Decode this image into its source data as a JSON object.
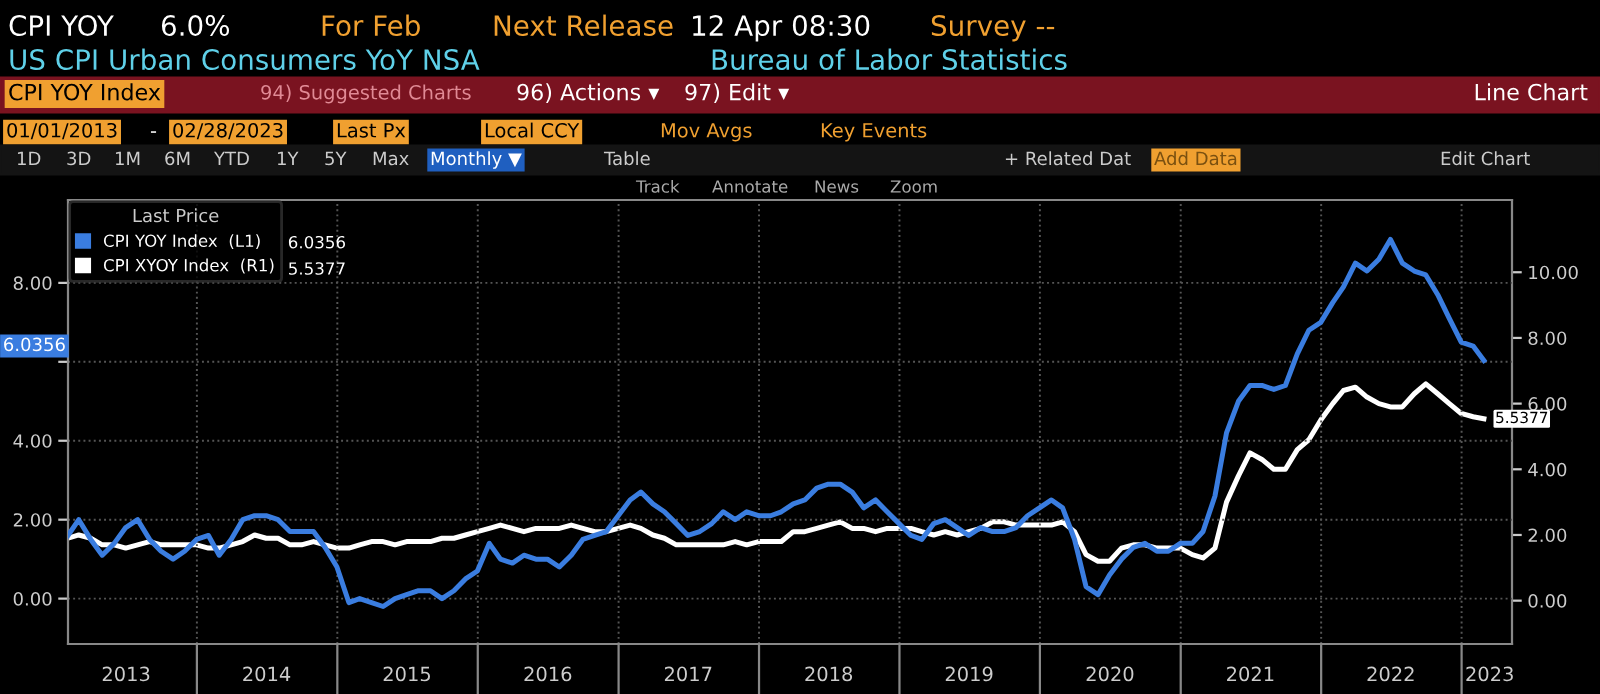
{
  "chart_data": {
    "type": "line",
    "title": "US CPI Urban Consumers YoY NSA",
    "subtitle": "Bureau of Labor Statistics",
    "legend_title": "Last Price",
    "annotations": [
      "CPI YOY",
      "6.0%",
      "For Feb",
      "Next Release",
      "12 Apr 08:30",
      "Survey --",
      "CPI YOY Index",
      "94) Suggested Charts",
      "96) Actions ▾",
      "97) Edit ▾",
      "Line Chart",
      "01/01/2013",
      "-",
      "02/28/2023",
      "Last Px",
      "Local CCY",
      "Mov Avgs",
      "Key Events",
      "1D",
      "3D",
      "1M",
      "6M",
      "YTD",
      "1Y",
      "5Y",
      "Max",
      "Monthly ▼",
      "Table",
      "+ Related Dat",
      "Add Data",
      "Edit Chart",
      "Track",
      "Annotate",
      "News",
      "Zoom",
      "6.0356",
      "5.5377",
      "6.0356"
    ],
    "x": [
      "2013-01-31",
      "2013-02-28",
      "2013-03-31",
      "2013-04-30",
      "2013-05-31",
      "2013-06-30",
      "2013-07-31",
      "2013-08-31",
      "2013-09-30",
      "2013-10-31",
      "2013-11-30",
      "2013-12-31",
      "2014-01-31",
      "2014-02-28",
      "2014-03-31",
      "2014-04-30",
      "2014-05-31",
      "2014-06-30",
      "2014-07-31",
      "2014-08-31",
      "2014-09-30",
      "2014-10-31",
      "2014-11-30",
      "2014-12-31",
      "2015-01-31",
      "2015-02-28",
      "2015-03-31",
      "2015-04-30",
      "2015-05-31",
      "2015-06-30",
      "2015-07-31",
      "2015-08-31",
      "2015-09-30",
      "2015-10-31",
      "2015-11-30",
      "2015-12-31",
      "2016-01-31",
      "2016-02-29",
      "2016-03-31",
      "2016-04-30",
      "2016-05-31",
      "2016-06-30",
      "2016-07-31",
      "2016-08-31",
      "2016-09-30",
      "2016-10-31",
      "2016-11-30",
      "2016-12-31",
      "2017-01-31",
      "2017-02-28",
      "2017-03-31",
      "2017-04-30",
      "2017-05-31",
      "2017-06-30",
      "2017-07-31",
      "2017-08-31",
      "2017-09-30",
      "2017-10-31",
      "2017-11-30",
      "2017-12-31",
      "2018-01-31",
      "2018-02-28",
      "2018-03-31",
      "2018-04-30",
      "2018-05-31",
      "2018-06-30",
      "2018-07-31",
      "2018-08-31",
      "2018-09-30",
      "2018-10-31",
      "2018-11-30",
      "2018-12-31",
      "2019-01-31",
      "2019-02-28",
      "2019-03-31",
      "2019-04-30",
      "2019-05-31",
      "2019-06-30",
      "2019-07-31",
      "2019-08-31",
      "2019-09-30",
      "2019-10-31",
      "2019-11-30",
      "2019-12-31",
      "2020-01-31",
      "2020-02-29",
      "2020-03-31",
      "2020-04-30",
      "2020-05-31",
      "2020-06-30",
      "2020-07-31",
      "2020-08-31",
      "2020-09-30",
      "2020-10-31",
      "2020-11-30",
      "2020-12-31",
      "2021-01-31",
      "2021-02-28",
      "2021-03-31",
      "2021-04-30",
      "2021-05-31",
      "2021-06-30",
      "2021-07-31",
      "2021-08-31",
      "2021-09-30",
      "2021-10-31",
      "2021-11-30",
      "2021-12-31",
      "2022-01-31",
      "2022-02-28",
      "2022-03-31",
      "2022-04-30",
      "2022-05-31",
      "2022-06-30",
      "2022-07-31",
      "2022-08-31",
      "2022-09-30",
      "2022-10-31",
      "2022-11-30",
      "2022-12-31",
      "2023-01-31",
      "2023-02-28"
    ],
    "series": [
      {
        "name": "CPI YOY Index  (L1)",
        "color": "#3a7de0",
        "values": [
          1.6,
          2.0,
          1.5,
          1.1,
          1.4,
          1.8,
          2.0,
          1.5,
          1.2,
          1.0,
          1.2,
          1.5,
          1.6,
          1.1,
          1.5,
          2.0,
          2.1,
          2.1,
          2.0,
          1.7,
          1.7,
          1.7,
          1.3,
          0.8,
          -0.1,
          0.0,
          -0.1,
          -0.2,
          0.0,
          0.1,
          0.2,
          0.2,
          0.0,
          0.2,
          0.5,
          0.7,
          1.4,
          1.0,
          0.9,
          1.1,
          1.0,
          1.0,
          0.8,
          1.1,
          1.5,
          1.6,
          1.7,
          2.1,
          2.5,
          2.7,
          2.4,
          2.2,
          1.9,
          1.6,
          1.7,
          1.9,
          2.2,
          2.0,
          2.2,
          2.1,
          2.1,
          2.2,
          2.4,
          2.5,
          2.8,
          2.9,
          2.9,
          2.7,
          2.3,
          2.5,
          2.2,
          1.9,
          1.6,
          1.5,
          1.9,
          2.0,
          1.8,
          1.6,
          1.8,
          1.7,
          1.7,
          1.8,
          2.1,
          2.3,
          2.5,
          2.3,
          1.5,
          0.3,
          0.1,
          0.6,
          1.0,
          1.3,
          1.4,
          1.2,
          1.2,
          1.4,
          1.4,
          1.7,
          2.6,
          4.2,
          5.0,
          5.4,
          5.4,
          5.3,
          5.4,
          6.2,
          6.8,
          7.0,
          7.5,
          7.9,
          8.5,
          8.3,
          8.6,
          9.1,
          8.5,
          8.3,
          8.2,
          7.7,
          7.1,
          6.5,
          6.4,
          6.0356
        ]
      },
      {
        "name": "CPI XYOY Index  (R1)",
        "color": "#ffffff",
        "axis": "y2",
        "values": [
          1.9,
          2.0,
          1.9,
          1.7,
          1.7,
          1.6,
          1.7,
          1.8,
          1.7,
          1.7,
          1.7,
          1.7,
          1.6,
          1.6,
          1.7,
          1.8,
          2.0,
          1.9,
          1.9,
          1.7,
          1.7,
          1.8,
          1.7,
          1.6,
          1.6,
          1.7,
          1.8,
          1.8,
          1.7,
          1.8,
          1.8,
          1.8,
          1.9,
          1.9,
          2.0,
          2.1,
          2.2,
          2.3,
          2.2,
          2.1,
          2.2,
          2.2,
          2.2,
          2.3,
          2.2,
          2.1,
          2.1,
          2.2,
          2.3,
          2.2,
          2.0,
          1.9,
          1.7,
          1.7,
          1.7,
          1.7,
          1.7,
          1.8,
          1.7,
          1.8,
          1.8,
          1.8,
          2.1,
          2.1,
          2.2,
          2.3,
          2.4,
          2.2,
          2.2,
          2.1,
          2.2,
          2.2,
          2.2,
          2.1,
          2.0,
          2.1,
          2.0,
          2.1,
          2.2,
          2.4,
          2.4,
          2.3,
          2.3,
          2.3,
          2.3,
          2.4,
          2.1,
          1.4,
          1.2,
          1.2,
          1.6,
          1.7,
          1.7,
          1.6,
          1.6,
          1.6,
          1.4,
          1.3,
          1.6,
          3.0,
          3.8,
          4.5,
          4.3,
          4.0,
          4.0,
          4.6,
          4.9,
          5.5,
          6.0,
          6.4,
          6.5,
          6.2,
          6.0,
          5.9,
          5.9,
          6.3,
          6.6,
          6.3,
          6.0,
          5.7,
          5.6,
          5.5377
        ],
        "value_labels": [
          null,
          null,
          null,
          null,
          null,
          null,
          null,
          null,
          null,
          null,
          null,
          null,
          null,
          null,
          null,
          null,
          null,
          null,
          null,
          null,
          null,
          null,
          null,
          null,
          null,
          null,
          null,
          null,
          null,
          null,
          null,
          null,
          null,
          null,
          null,
          null,
          null,
          null,
          null,
          null,
          null,
          null,
          null,
          null,
          null,
          null,
          null,
          null,
          null,
          null,
          null,
          null,
          null,
          null,
          null,
          null,
          null,
          null,
          null,
          null,
          null,
          null,
          null,
          null,
          null,
          null,
          null,
          null,
          null,
          null,
          null,
          null,
          null,
          null,
          null,
          null,
          null,
          null,
          null,
          null,
          null,
          null,
          null,
          null,
          null,
          null,
          null,
          null,
          null,
          null,
          null,
          null,
          null,
          null,
          null,
          null,
          null,
          null,
          null,
          null,
          null,
          null,
          null,
          null,
          null,
          null,
          null,
          null,
          null,
          null,
          null,
          null,
          null,
          null,
          null,
          null,
          null,
          null,
          null,
          null,
          null,
          "5.5377"
        ]
      }
    ],
    "xlim": [
      "2013-01-31",
      "2023-05-12"
    ],
    "xticks": [
      {
        "value": "2014-01-01",
        "label": null
      },
      {
        "value": "2015-01-01",
        "label": null
      },
      {
        "value": "2016-01-01",
        "label": null
      },
      {
        "value": "2017-01-01",
        "label": null
      },
      {
        "value": "2018-01-01",
        "label": null
      },
      {
        "value": "2019-01-01",
        "label": null
      },
      {
        "value": "2020-01-01",
        "label": null
      },
      {
        "value": "2021-01-01",
        "label": null
      },
      {
        "value": "2022-01-01",
        "label": null
      },
      {
        "value": "2023-01-01",
        "label": null
      },
      {
        "value": "2013-07-01",
        "label": "2013"
      },
      {
        "value": "2014-07-01",
        "label": "2014"
      },
      {
        "value": "2015-07-01",
        "label": "2015"
      },
      {
        "value": "2016-07-01",
        "label": "2016"
      },
      {
        "value": "2017-07-01",
        "label": "2017"
      },
      {
        "value": "2018-07-01",
        "label": "2018"
      },
      {
        "value": "2019-07-01",
        "label": "2019"
      },
      {
        "value": "2020-07-01",
        "label": "2020"
      },
      {
        "value": "2021-07-01",
        "label": "2021"
      },
      {
        "value": "2022-07-01",
        "label": "2022"
      },
      {
        "value": "2023-03-15",
        "label": "2023"
      }
    ],
    "ylim": [
      -1.15,
      10.1
    ],
    "yticks": [
      {
        "value": 0,
        "label": "0.00"
      },
      {
        "value": 2,
        "label": "2.00"
      },
      {
        "value": 4,
        "label": "4.00"
      },
      {
        "value": 6,
        "label": null
      },
      {
        "value": 8,
        "label": "8.00"
      }
    ],
    "y2lim": [
      -1.32,
      12.2
    ],
    "y2ticks": [
      {
        "value": 0,
        "label": "0.00"
      },
      {
        "value": 2,
        "label": "2.00"
      },
      {
        "value": 4,
        "label": "4.00"
      },
      {
        "value": 6,
        "label": "6.00"
      },
      {
        "value": 8,
        "label": "8.00"
      },
      {
        "value": 10,
        "label": "10.00"
      }
    ],
    "grid": true,
    "legend": "top left",
    "marker": "none",
    "line_style": "solid"
  }
}
